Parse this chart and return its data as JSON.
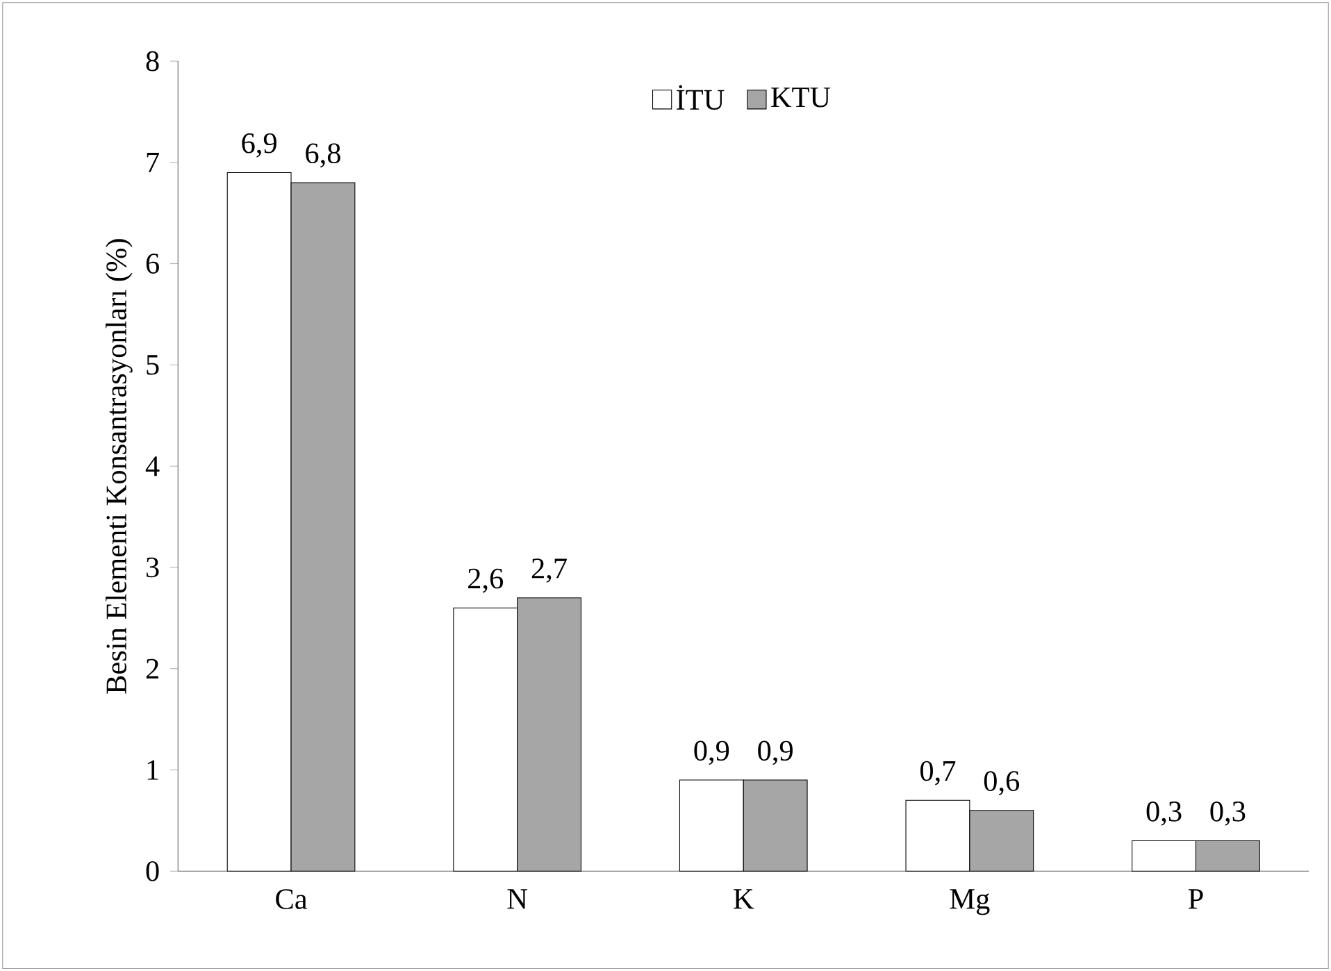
{
  "chart_data": {
    "type": "bar",
    "ylabel": "Besin Elementi Konsantrasyonları (%)",
    "categories": [
      "Ca",
      "N",
      "K",
      "Mg",
      "P"
    ],
    "series": [
      {
        "name": "İTU",
        "color": "#ffffff",
        "values": [
          6.9,
          2.6,
          0.9,
          0.7,
          0.3
        ],
        "value_labels": [
          "6,9",
          "2,6",
          "0,9",
          "0,7",
          "0,3"
        ]
      },
      {
        "name": "KTU",
        "color": "#a6a6a6",
        "values": [
          6.8,
          2.7,
          0.9,
          0.6,
          0.3
        ],
        "value_labels": [
          "6,8",
          "2,7",
          "0,9",
          "0,6",
          "0,3"
        ]
      }
    ],
    "ylim": [
      0,
      8
    ],
    "yticks": [
      0,
      1,
      2,
      3,
      4,
      5,
      6,
      7,
      8
    ],
    "grid": false,
    "legend": "top"
  }
}
